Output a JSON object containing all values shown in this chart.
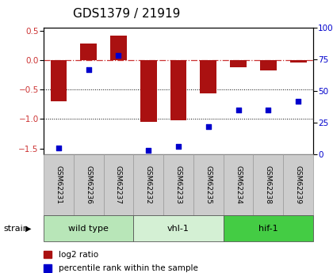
{
  "title": "GDS1379 / 21919",
  "samples": [
    "GSM62231",
    "GSM62236",
    "GSM62237",
    "GSM62232",
    "GSM62233",
    "GSM62235",
    "GSM62234",
    "GSM62238",
    "GSM62239"
  ],
  "log2_ratio": [
    -0.7,
    0.28,
    0.42,
    -1.05,
    -1.02,
    -0.57,
    -0.12,
    -0.17,
    -0.04
  ],
  "percentile_rank": [
    5,
    67,
    78,
    3,
    6,
    22,
    35,
    35,
    42
  ],
  "groups": [
    {
      "label": "wild type",
      "start": 0,
      "end": 3,
      "color": "#b8e6b8"
    },
    {
      "label": "vhl-1",
      "start": 3,
      "end": 6,
      "color": "#d4f0d4"
    },
    {
      "label": "hif-1",
      "start": 6,
      "end": 9,
      "color": "#44cc44"
    }
  ],
  "bar_color": "#aa1111",
  "dot_color": "#0000cc",
  "ylim_left": [
    -1.6,
    0.55
  ],
  "ylim_right": [
    0,
    100
  ],
  "yticks_left": [
    -1.5,
    -1.0,
    -0.5,
    0.0,
    0.5
  ],
  "yticks_right": [
    0,
    25,
    50,
    75,
    100
  ],
  "hline_color": "#cc3333",
  "dotline_color": "black",
  "background_color": "#ffffff",
  "sample_box_color": "#cccccc",
  "strain_label": "strain",
  "legend_bar_label": "log2 ratio",
  "legend_dot_label": "percentile rank within the sample",
  "title_fontsize": 11,
  "tick_fontsize": 7.5,
  "sample_fontsize": 6.5,
  "group_fontsize": 8,
  "legend_fontsize": 7.5
}
